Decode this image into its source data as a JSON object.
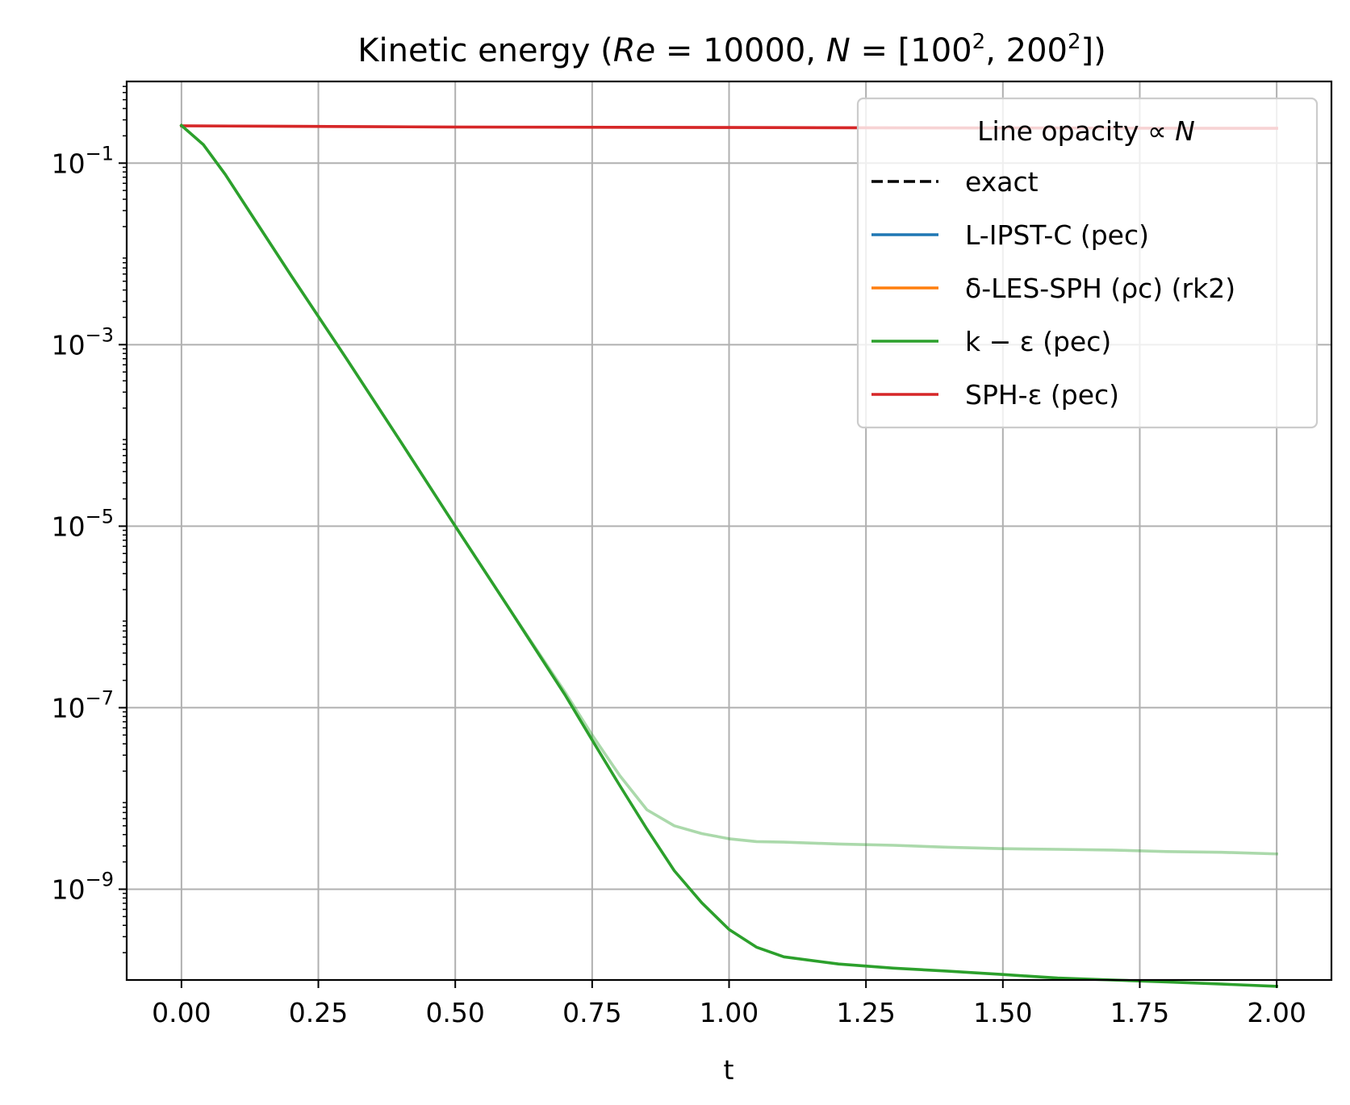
{
  "chart_data": {
    "type": "line",
    "title": "Kinetic energy  (Re = 10000, N = [100², 200²])",
    "title_parts": {
      "prefix": "Kinetic energy  (",
      "re_var": "Re",
      "eq1": " = 10000, ",
      "n_var": "N",
      "eq2": " = [100",
      "sup1": "2",
      "mid": ", 200",
      "sup2": "2",
      "suffix": "])"
    },
    "xlabel": "t",
    "ylabel": "",
    "xlim": [
      -0.1,
      2.1
    ],
    "ylim_log10": [
      -10.0,
      -0.1
    ],
    "yscale": "log",
    "grid": true,
    "x_ticks": [
      {
        "value": 0.0,
        "label": "0.00"
      },
      {
        "value": 0.25,
        "label": "0.25"
      },
      {
        "value": 0.5,
        "label": "0.50"
      },
      {
        "value": 0.75,
        "label": "0.75"
      },
      {
        "value": 1.0,
        "label": "1.00"
      },
      {
        "value": 1.25,
        "label": "1.25"
      },
      {
        "value": 1.5,
        "label": "1.50"
      },
      {
        "value": 1.75,
        "label": "1.75"
      },
      {
        "value": 2.0,
        "label": "2.00"
      }
    ],
    "y_ticks": [
      {
        "exp": -1,
        "base": "10",
        "sup": "−1"
      },
      {
        "exp": -3,
        "base": "10",
        "sup": "−3"
      },
      {
        "exp": -5,
        "base": "10",
        "sup": "−5"
      },
      {
        "exp": -7,
        "base": "10",
        "sup": "−7"
      },
      {
        "exp": -9,
        "base": "10",
        "sup": "−9"
      }
    ],
    "legend": {
      "position": "upper right",
      "title_text": "Line opacity ∝ ",
      "title_var": "N",
      "entries": [
        {
          "label": "exact",
          "color": "#000000",
          "dash": true
        },
        {
          "label": "L-IPST-C (pec)",
          "color": "#1f77b4",
          "dash": false
        },
        {
          "label": "δ-LES-SPH (ρc) (rk2)",
          "color": "#ff7f0e",
          "dash": false
        },
        {
          "label": "k − ε (pec)",
          "color": "#2ca02c",
          "dash": false
        },
        {
          "label": "SPH-ε (pec)",
          "color": "#d62728",
          "dash": false
        }
      ]
    },
    "series": [
      {
        "name": "SPH-ε (pec)",
        "resolution": "N = 100²",
        "color": "#d62728",
        "opacity": 0.35,
        "x": [
          0.0,
          0.5,
          1.0,
          1.5,
          2.0
        ],
        "y": [
          0.258,
          0.25,
          0.247,
          0.244,
          0.242
        ]
      },
      {
        "name": "SPH-ε (pec)",
        "resolution": "N = 200²",
        "color": "#d62728",
        "opacity": 1.0,
        "x": [
          0.0,
          0.5,
          1.0,
          1.5,
          2.0
        ],
        "y": [
          0.258,
          0.25,
          0.247,
          0.244,
          0.242
        ]
      },
      {
        "name": "k − ε (pec)",
        "resolution": "N = 100²",
        "color": "#2ca02c",
        "opacity": 0.4,
        "x": [
          0.0,
          0.04,
          0.08,
          0.12,
          0.2,
          0.3,
          0.4,
          0.5,
          0.6,
          0.7,
          0.75,
          0.8,
          0.85,
          0.9,
          0.95,
          1.0,
          1.05,
          1.1,
          1.2,
          1.3,
          1.4,
          1.5,
          1.6,
          1.7,
          1.8,
          1.9,
          2.0
        ],
        "y": [
          0.26,
          0.16,
          0.075,
          0.032,
          0.0058,
          0.00072,
          8.6e-05,
          1e-05,
          1.2e-06,
          1.5e-07,
          5e-08,
          1.8e-08,
          7.5e-09,
          5e-09,
          4.1e-09,
          3.6e-09,
          3.35e-09,
          3.3e-09,
          3.15e-09,
          3.05e-09,
          2.9e-09,
          2.8e-09,
          2.75e-09,
          2.7e-09,
          2.6e-09,
          2.55e-09,
          2.45e-09
        ]
      },
      {
        "name": "k − ε (pec)",
        "resolution": "N = 200²",
        "color": "#2ca02c",
        "opacity": 1.0,
        "x": [
          0.0,
          0.04,
          0.08,
          0.12,
          0.2,
          0.3,
          0.4,
          0.5,
          0.6,
          0.7,
          0.75,
          0.8,
          0.85,
          0.9,
          0.95,
          1.0,
          1.05,
          1.1,
          1.2,
          1.3,
          1.4,
          1.5,
          1.6,
          1.7,
          1.8,
          1.9,
          2.0
        ],
        "y": [
          0.26,
          0.16,
          0.075,
          0.032,
          0.0058,
          0.00072,
          8.6e-05,
          1e-05,
          1.2e-06,
          1.4e-07,
          4.4e-08,
          1.4e-08,
          4.6e-09,
          1.6e-09,
          7.1e-10,
          3.6e-10,
          2.3e-10,
          1.8e-10,
          1.5e-10,
          1.35e-10,
          1.25e-10,
          1.15e-10,
          1.05e-10,
          1e-10,
          9.5e-11,
          9e-11,
          8.5e-11
        ]
      }
    ]
  }
}
